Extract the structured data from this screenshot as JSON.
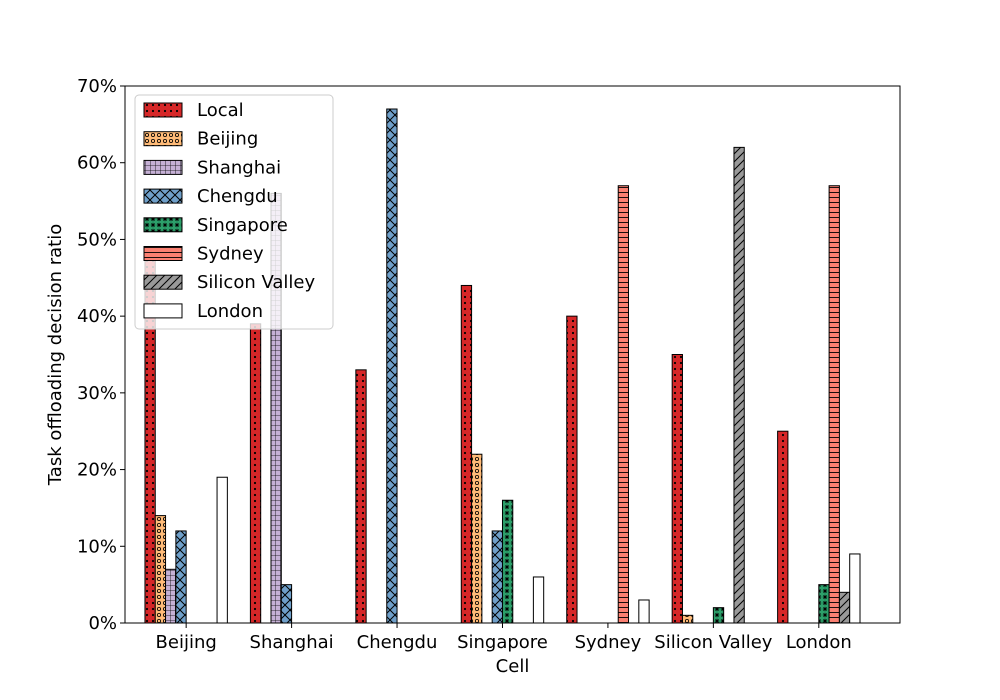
{
  "chart_data": {
    "type": "bar",
    "title": "",
    "xlabel": "Cell",
    "ylabel": "Task offloading decision ratio",
    "ylim": [
      0,
      70
    ],
    "yticks": [
      0,
      10,
      20,
      30,
      40,
      50,
      60,
      70
    ],
    "ytick_labels": [
      "0%",
      "10%",
      "20%",
      "30%",
      "40%",
      "50%",
      "60%",
      "70%"
    ],
    "categories": [
      "Beijing",
      "Shanghai",
      "Chengdu",
      "Singapore",
      "Sydney",
      "Silicon Valley",
      "London"
    ],
    "legend_position": "top-left",
    "grid": false,
    "series": [
      {
        "name": "Local",
        "color": "#d62728",
        "hatch": "dots",
        "values": [
          48,
          39,
          33,
          44,
          40,
          35,
          25
        ]
      },
      {
        "name": "Beijing",
        "color": "#ffbb78",
        "hatch": "circles",
        "values": [
          14,
          0,
          0,
          22,
          0,
          1,
          0
        ]
      },
      {
        "name": "Shanghai",
        "color": "#c5b0d5",
        "hatch": "grid",
        "values": [
          7,
          56,
          0,
          0,
          0,
          0,
          0
        ]
      },
      {
        "name": "Chengdu",
        "color": "#6f9fc9",
        "hatch": "crosshatch",
        "values": [
          12,
          5,
          67,
          12,
          0,
          0,
          0
        ]
      },
      {
        "name": "Singapore",
        "color": "#2ca06a",
        "hatch": "stars",
        "values": [
          0,
          0,
          0,
          16,
          0,
          2,
          5
        ]
      },
      {
        "name": "Sydney",
        "color": "#fa8072",
        "hatch": "horizontal",
        "values": [
          0,
          0,
          0,
          0,
          57,
          0,
          57
        ]
      },
      {
        "name": "Silicon Valley",
        "color": "#999999",
        "hatch": "diagonal",
        "values": [
          0,
          0,
          0,
          0,
          0,
          62,
          4
        ]
      },
      {
        "name": "London",
        "color": "#ffffff",
        "hatch": "none",
        "values": [
          19,
          0,
          0,
          6,
          3,
          0,
          9
        ]
      }
    ]
  }
}
